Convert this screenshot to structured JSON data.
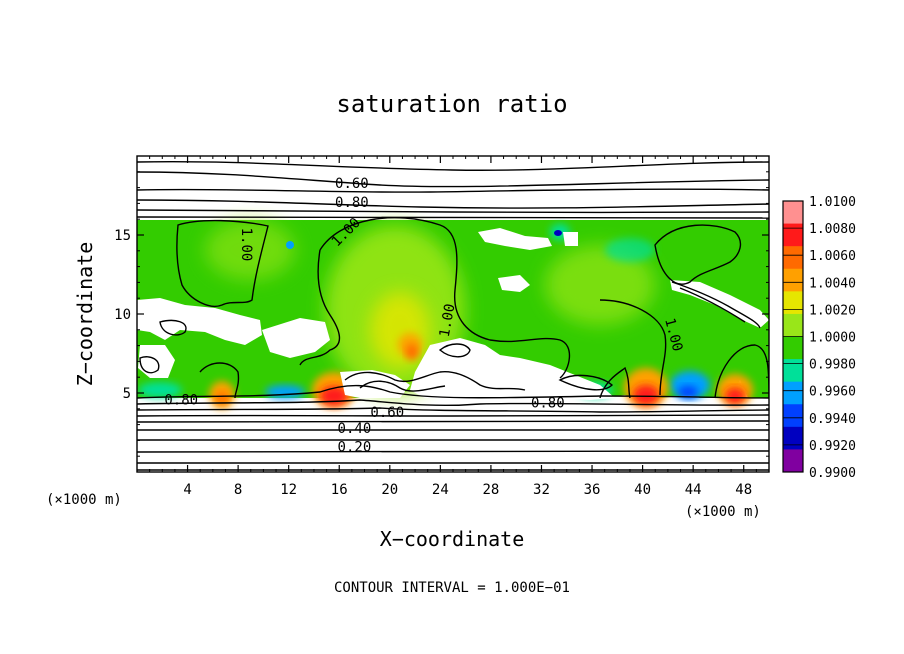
{
  "chart_data": {
    "type": "heatmap",
    "title": "saturation ratio",
    "xlabel": "X−coordinate",
    "ylabel": "Z−coordinate",
    "x_unit": "(×1000 m)",
    "y_unit": "(×1000 m)",
    "xlim": [
      0,
      50
    ],
    "ylim": [
      0,
      20
    ],
    "x_ticks": [
      4,
      8,
      12,
      16,
      20,
      24,
      28,
      32,
      36,
      40,
      44,
      48
    ],
    "y_ticks": [
      5,
      10,
      15
    ],
    "footer": "CONTOUR INTERVAL = 1.000E−01",
    "colorbar": {
      "labels": [
        "1.0100",
        "1.0080",
        "1.0060",
        "1.0040",
        "1.0020",
        "1.0000",
        "0.9980",
        "0.9960",
        "0.9940",
        "0.9920",
        "0.9900"
      ],
      "colors": [
        "#ff9090",
        "#ff1a1a",
        "#ff6a00",
        "#ffa000",
        "#e6e600",
        "#99e619",
        "#33cc00",
        "#00e099",
        "#00a0ff",
        "#0040ff",
        "#0000c0",
        "#8000a0"
      ]
    },
    "contour_labels": [
      {
        "text": "0.60",
        "x": 17.0,
        "z": 18.3
      },
      {
        "text": "0.80",
        "x": 17.0,
        "z": 17.1
      },
      {
        "text": "1.00",
        "x": 8.7,
        "z": 14.4,
        "rotate": 90
      },
      {
        "text": "1.00",
        "x": 16.5,
        "z": 15.2,
        "rotate": -45
      },
      {
        "text": "1.00",
        "x": 24.5,
        "z": 9.6,
        "rotate": -80
      },
      {
        "text": "1.00",
        "x": 42.5,
        "z": 8.7,
        "rotate": 75
      },
      {
        "text": "0.80",
        "x": 3.5,
        "z": 4.6
      },
      {
        "text": "0.80",
        "x": 32.5,
        "z": 4.4
      },
      {
        "text": "0.60",
        "x": 19.8,
        "z": 3.8
      },
      {
        "text": "0.40",
        "x": 17.2,
        "z": 2.8
      },
      {
        "text": "0.20",
        "x": 17.2,
        "z": 1.6
      }
    ]
  }
}
